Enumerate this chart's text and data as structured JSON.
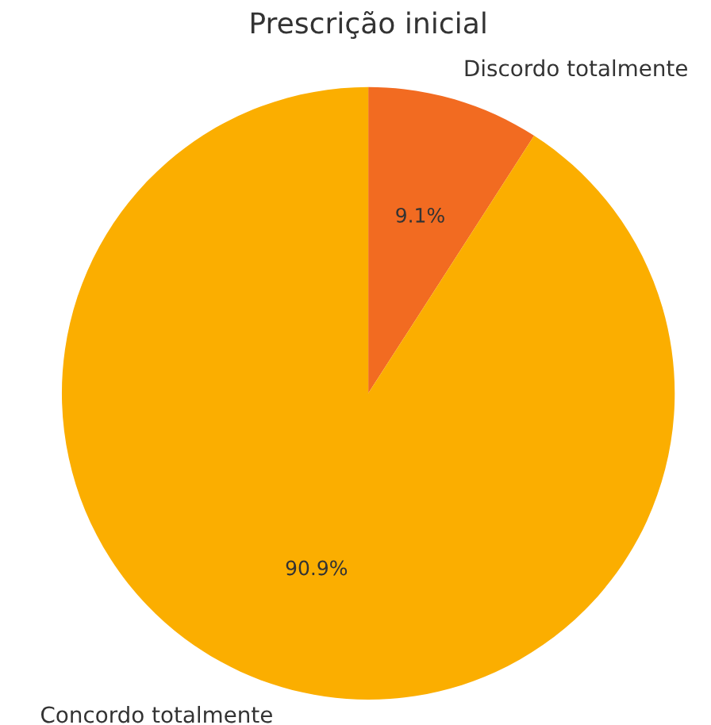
{
  "chart_data": {
    "type": "pie",
    "title": "Prescrição inicial",
    "categories": [
      "Discordo totalmente",
      "Concordo totalmente"
    ],
    "values": [
      9.1,
      90.9
    ],
    "value_labels": [
      "9.1%",
      "90.9%"
    ],
    "colors": [
      "#f26b21",
      "#fbae00"
    ]
  }
}
